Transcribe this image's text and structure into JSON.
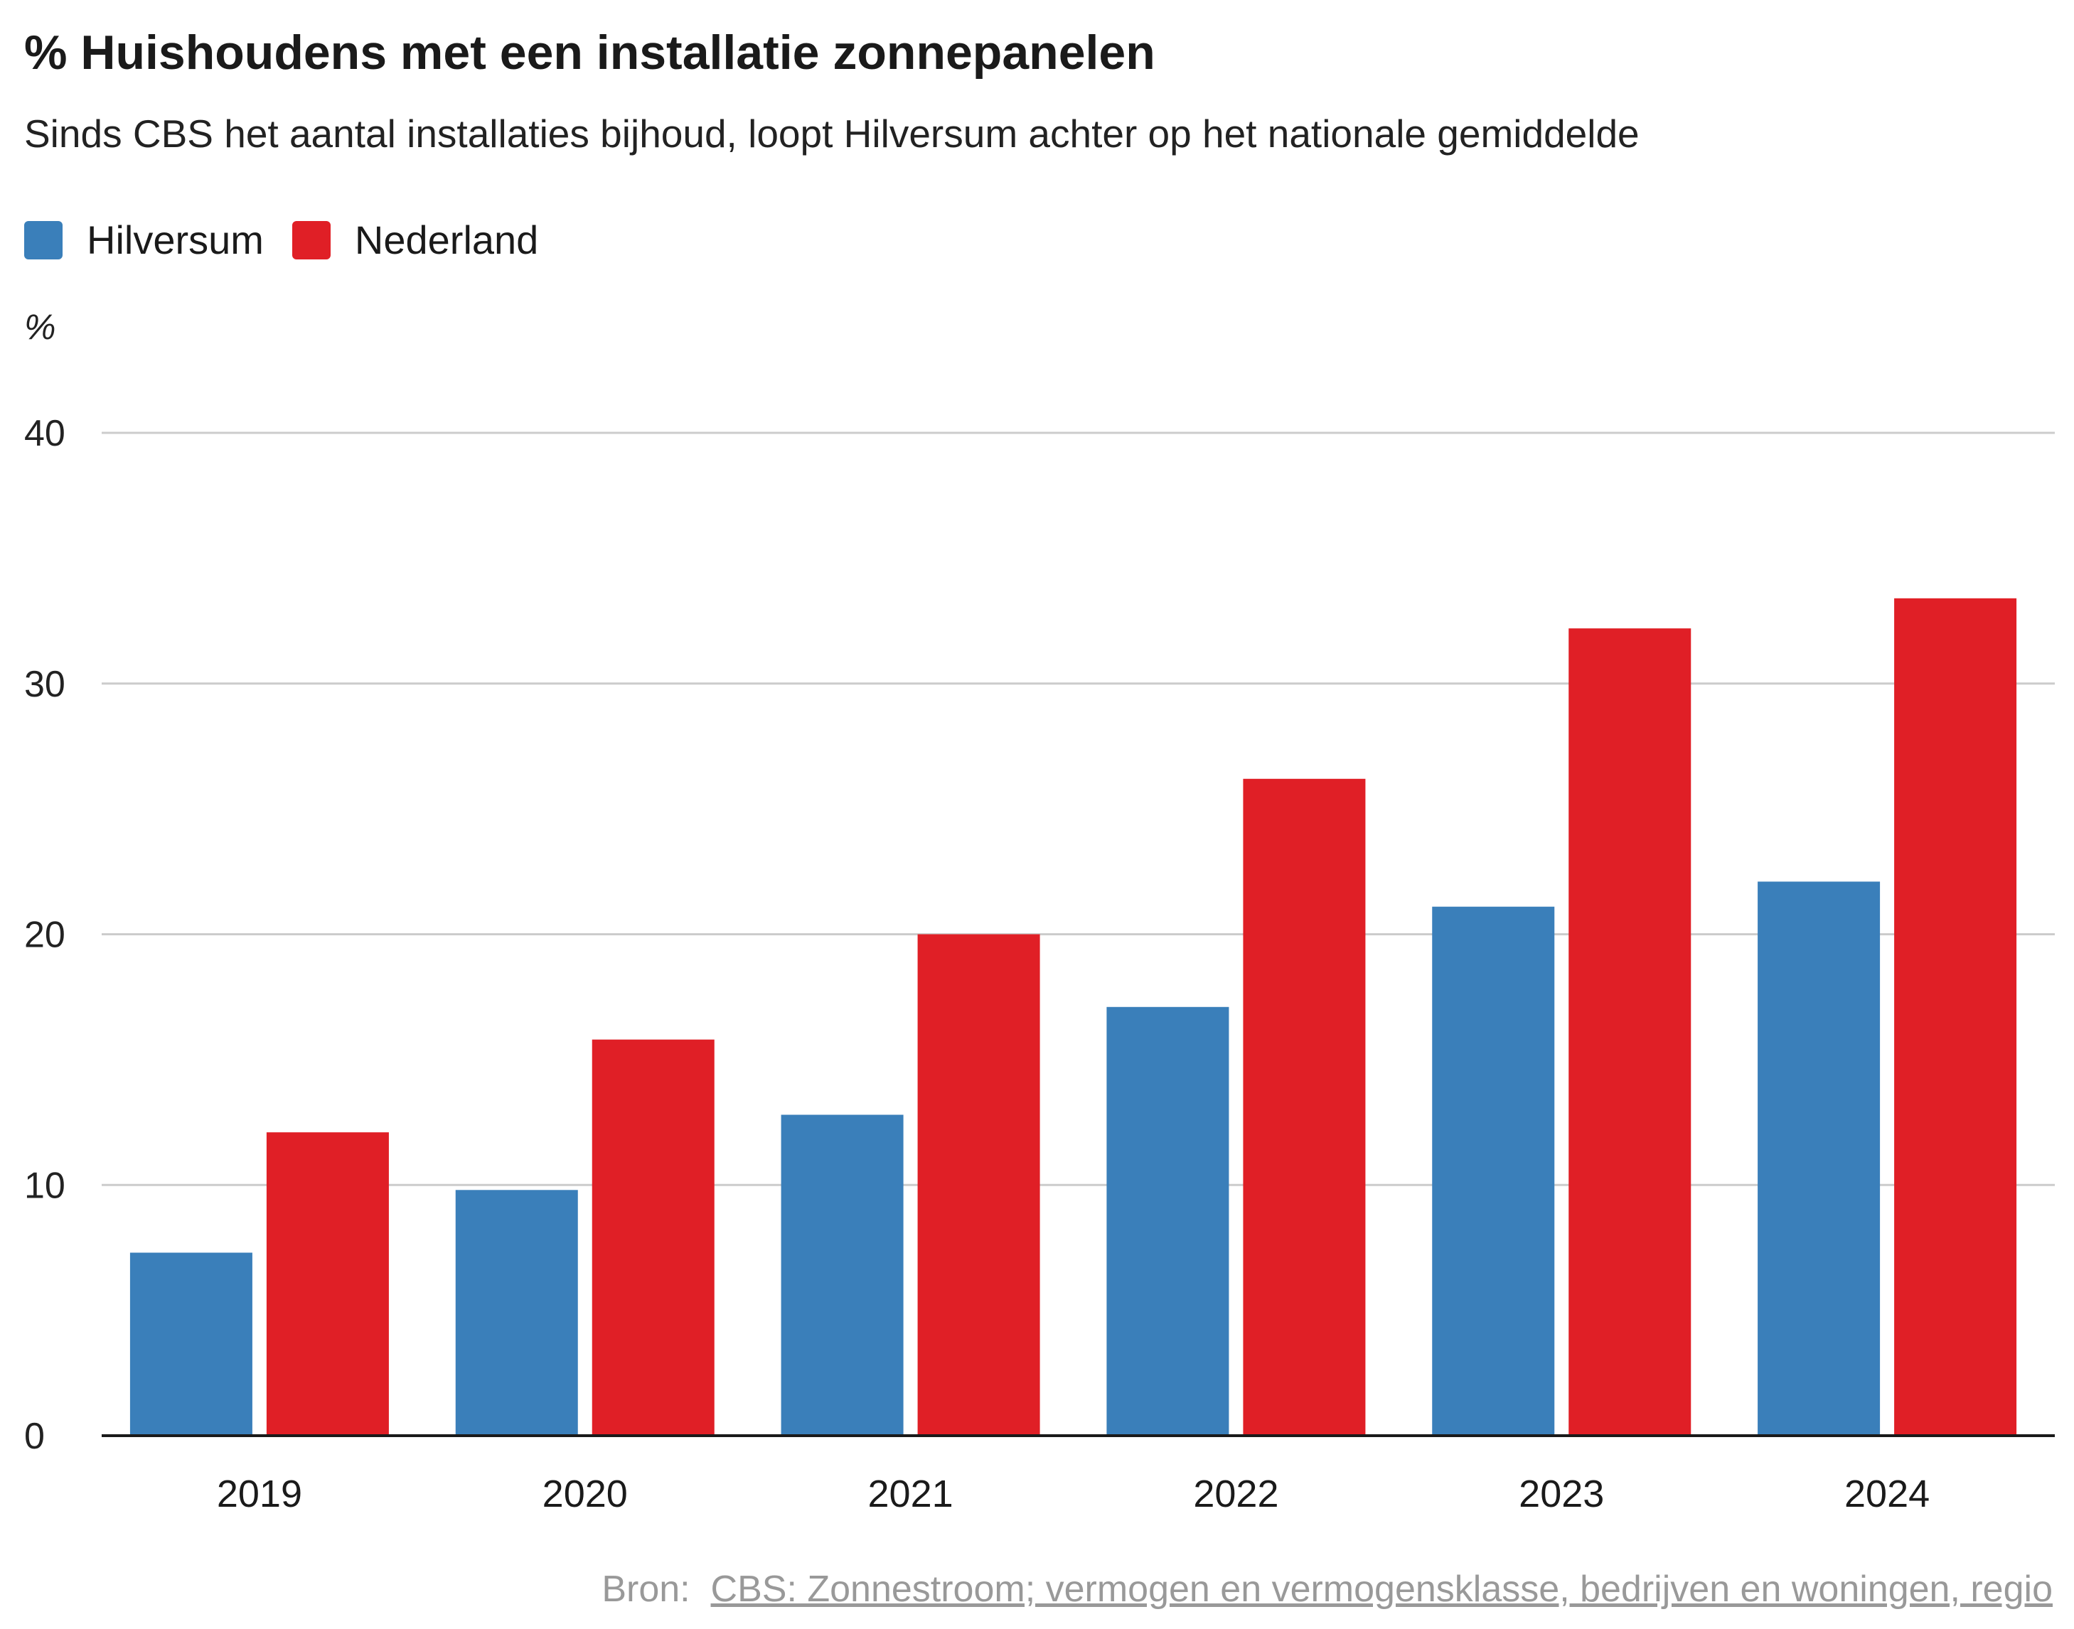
{
  "title": "% Huishoudens met een installatie zonnepanelen",
  "subtitle": "Sinds CBS het aantal installaties bijhoud, loopt Hilversum achter op het nationale gemiddelde",
  "legend": [
    {
      "label": "Hilversum",
      "color": "#3a7fba"
    },
    {
      "label": "Nederland",
      "color": "#e01f26"
    }
  ],
  "unit_label": "%",
  "source": {
    "prefix": "Bron:",
    "link_text": "CBS: Zonnestroom; vermogen en vermogensklasse, bedrijven en woningen, regio"
  },
  "chart_data": {
    "type": "bar",
    "categories": [
      "2019",
      "2020",
      "2021",
      "2022",
      "2023",
      "2024"
    ],
    "series": [
      {
        "name": "Hilversum",
        "color": "#3a7fba",
        "values": [
          7.3,
          9.8,
          12.8,
          17.1,
          21.1,
          22.1
        ]
      },
      {
        "name": "Nederland",
        "color": "#e01f26",
        "values": [
          12.1,
          15.8,
          20.0,
          26.2,
          32.2,
          33.4
        ]
      }
    ],
    "ylabel": "%",
    "ylim": [
      0,
      40
    ],
    "yticks": [
      0,
      10,
      20,
      30,
      40
    ],
    "grid": true,
    "legend_position": "top-left"
  }
}
